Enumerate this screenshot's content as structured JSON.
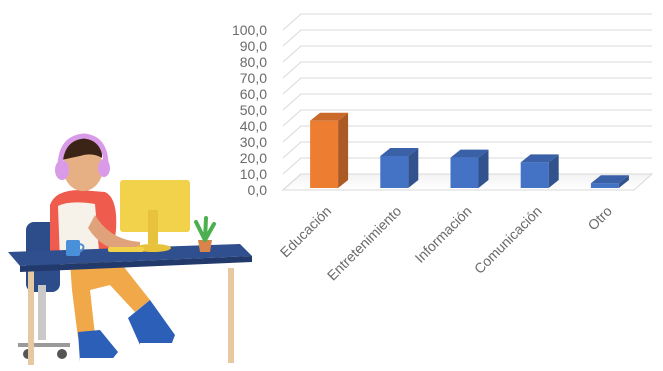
{
  "chart_data": {
    "type": "bar",
    "categories": [
      "Educación",
      "Entretenimiento",
      "Información",
      "Comunicación",
      "Otro"
    ],
    "values": [
      42,
      20,
      19,
      16,
      3
    ],
    "ylim": [
      0,
      100
    ],
    "y_ticks": [
      "0,0",
      "10,0",
      "20,0",
      "30,0",
      "40,0",
      "50,0",
      "60,0",
      "70,0",
      "80,0",
      "90,0",
      "100,0"
    ],
    "grid": true,
    "style": "3d-column",
    "colors": [
      "#ed7d31",
      "#4472c4",
      "#4472c4",
      "#4472c4",
      "#4472c4"
    ]
  },
  "illustration": {
    "subject": "person-at-desk-computer",
    "colors": {
      "monitor": "#f2d24b",
      "desk": "#2f4f8f",
      "shirt": "#ef5b4c",
      "shoes": "#2c5fb8",
      "headphones": "#d99be8",
      "plant": "#4caf50"
    }
  }
}
